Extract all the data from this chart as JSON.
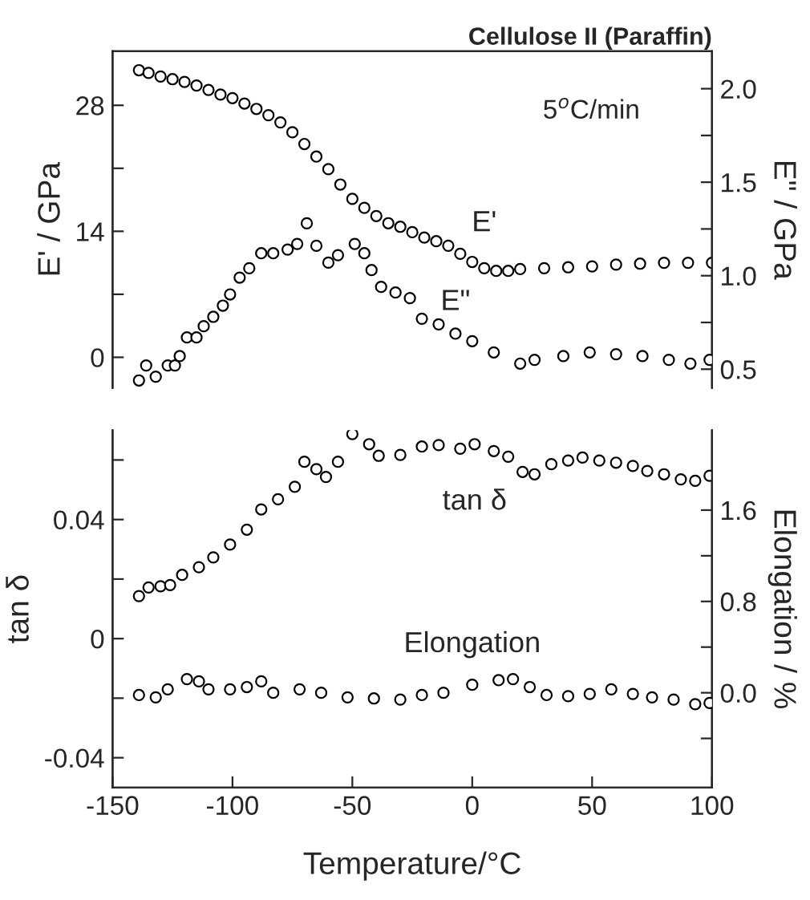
{
  "chart_data": [
    {
      "type": "scatter",
      "title": "Cellulose II (Paraffin)",
      "ylabel": "E' / GPa",
      "y2label": "E\" / GPa",
      "marker": "circle",
      "grid": false,
      "legend": false,
      "tick_labels": "y",
      "annotations": [
        "5$^{o}$C/min"
      ],
      "xlim": [
        -150,
        100
      ],
      "ylim": [
        -3.4,
        34
      ],
      "yticks": [
        0,
        {
          "value": 7,
          "label": null
        },
        14,
        {
          "value": 21,
          "label": null
        },
        28
      ],
      "y2lim": [
        0.4,
        2.2
      ],
      "y2ticks": [
        0.5,
        {
          "value": 0.75,
          "label": null
        },
        {
          "value": 1,
          "label": "1.0"
        },
        {
          "value": 1.25,
          "label": null
        },
        1.5,
        {
          "value": 1.75,
          "label": null
        },
        {
          "value": 2,
          "label": "2.0"
        }
      ],
      "series": [
        {
          "name": "E'",
          "color": "#000000",
          "x": [
            -139,
            -135,
            -130,
            -125,
            -120,
            -115,
            -110,
            -105,
            -100,
            -95,
            -90,
            -85,
            -80,
            -75,
            -70,
            -65,
            -60,
            -55,
            -50,
            -45,
            -40,
            -35,
            -30,
            -25,
            -20,
            -15,
            -10,
            -5,
            0,
            5,
            10,
            15,
            20,
            30,
            40,
            50,
            60,
            70,
            80,
            90,
            100
          ],
          "values": [
            31.9,
            31.6,
            31.2,
            30.9,
            30.6,
            30.2,
            29.7,
            29.2,
            28.8,
            28.2,
            27.6,
            26.9,
            26.1,
            25.0,
            23.7,
            22.3,
            20.9,
            19.2,
            17.6,
            16.6,
            15.7,
            14.9,
            14.5,
            13.9,
            13.3,
            12.9,
            12.4,
            11.5,
            10.6,
            9.9,
            9.6,
            9.6,
            9.8,
            9.9,
            10.0,
            10.1,
            10.3,
            10.4,
            10.5,
            10.5,
            10.5
          ]
        },
        {
          "name": "E\"",
          "color": "#000000",
          "axis": "y2",
          "x": [
            -139,
            -136,
            -132,
            -127,
            -124,
            -122,
            -119,
            -115,
            -112,
            -108,
            -104,
            -101,
            -97,
            -93,
            -88,
            -83,
            -77,
            -73,
            -69,
            -65,
            -60,
            -56,
            -49,
            -45,
            -42,
            -38,
            -32,
            -26,
            -21,
            -14,
            -7,
            0,
            9,
            20,
            26,
            38,
            49,
            60,
            71,
            82,
            91,
            99
          ],
          "values": [
            0.44,
            0.52,
            0.46,
            0.52,
            0.52,
            0.57,
            0.67,
            0.67,
            0.73,
            0.78,
            0.84,
            0.9,
            0.99,
            1.04,
            1.12,
            1.12,
            1.14,
            1.17,
            1.28,
            1.16,
            1.07,
            1.11,
            1.17,
            1.12,
            1.03,
            0.94,
            0.91,
            0.88,
            0.77,
            0.74,
            0.69,
            0.65,
            0.59,
            0.53,
            0.55,
            0.57,
            0.59,
            0.58,
            0.57,
            0.55,
            0.53,
            0.55
          ]
        }
      ]
    },
    {
      "type": "scatter",
      "xlabel": "Temperature/°C",
      "ylabel": "tan δ",
      "y2label": "Elongation / %",
      "marker": "circle",
      "grid": false,
      "legend": false,
      "xlim": [
        -150,
        100
      ],
      "xticks": [
        -150,
        -100,
        -50,
        0,
        50,
        100
      ],
      "ylim": [
        -0.05,
        0.07
      ],
      "yticks": [
        -0.04,
        {
          "value": -0.02,
          "label": null
        },
        0,
        {
          "value": 0.02,
          "label": null
        },
        0.04,
        {
          "value": 0.06,
          "label": null
        }
      ],
      "y2lim": [
        -0.83,
        2.3
      ],
      "y2ticks": [
        {
          "value": -0.4,
          "label": null
        },
        {
          "value": 0,
          "label": "0.0"
        },
        {
          "value": 0.4,
          "label": null
        },
        0.8,
        {
          "value": 1.2,
          "label": null
        },
        1.6
      ],
      "series": [
        {
          "name": "tan δ",
          "color": "#000000",
          "x": [
            -139,
            -135,
            -130,
            -126,
            -121,
            -114,
            -108,
            -101,
            -94,
            -88,
            -81,
            -74,
            -70,
            -65,
            -61,
            -56,
            -50,
            -43,
            -39,
            -30,
            -21,
            -14,
            -5,
            1,
            9,
            15,
            21,
            26,
            33,
            40,
            46,
            53,
            60,
            67,
            73,
            80,
            87,
            93,
            99
          ],
          "values": [
            0.0143,
            0.0172,
            0.0176,
            0.018,
            0.0214,
            0.024,
            0.0273,
            0.0316,
            0.0366,
            0.0434,
            0.0468,
            0.051,
            0.0594,
            0.0569,
            0.0543,
            0.0594,
            0.0687,
            0.0653,
            0.0614,
            0.0617,
            0.0645,
            0.065,
            0.0638,
            0.0653,
            0.063,
            0.0611,
            0.056,
            0.0552,
            0.0586,
            0.0598,
            0.0608,
            0.0598,
            0.0591,
            0.058,
            0.0563,
            0.0552,
            0.0535,
            0.053,
            0.0547
          ]
        },
        {
          "name": "Elongation",
          "color": "#000000",
          "axis": "y2",
          "x": [
            -139,
            -132,
            -127,
            -119,
            -114,
            -110,
            -101,
            -94,
            -88,
            -83,
            -72,
            -63,
            -52,
            -41,
            -30,
            -21,
            -12,
            0,
            11,
            17,
            24,
            31,
            40,
            49,
            58,
            67,
            75,
            84,
            93,
            99
          ],
          "values": [
            -0.02,
            -0.04,
            0.03,
            0.12,
            0.1,
            0.03,
            0.03,
            0.05,
            0.1,
            0.0,
            0.03,
            0.0,
            -0.04,
            -0.05,
            -0.06,
            -0.02,
            0.0,
            0.07,
            0.11,
            0.12,
            0.05,
            -0.02,
            -0.03,
            -0.01,
            0.03,
            -0.01,
            -0.04,
            -0.06,
            -0.1,
            -0.09
          ]
        }
      ]
    }
  ]
}
